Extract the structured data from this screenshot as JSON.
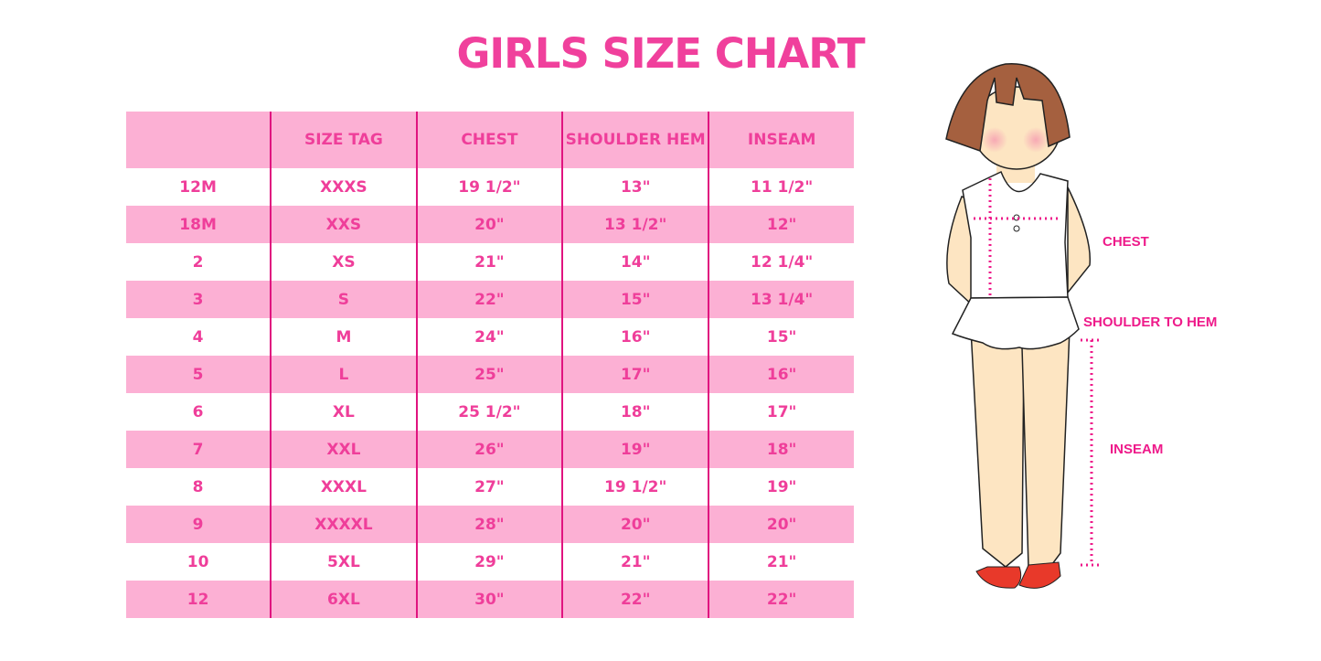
{
  "title": "GIRLS SIZE CHART",
  "table": {
    "headers": [
      "",
      "SIZE TAG",
      "CHEST",
      "SHOULDER HEM",
      "INSEAM"
    ],
    "rows": [
      [
        "12M",
        "XXXS",
        "19 1/2\"",
        "13\"",
        "11 1/2\""
      ],
      [
        "18M",
        "XXS",
        "20\"",
        "13 1/2\"",
        "12\""
      ],
      [
        "2",
        "XS",
        "21\"",
        "14\"",
        "12 1/4\""
      ],
      [
        "3",
        "S",
        "22\"",
        "15\"",
        "13 1/4\""
      ],
      [
        "4",
        "M",
        "24\"",
        "16\"",
        "15\""
      ],
      [
        "5",
        "L",
        "25\"",
        "17\"",
        "16\""
      ],
      [
        "6",
        "XL",
        "25 1/2\"",
        "18\"",
        "17\""
      ],
      [
        "7",
        "XXL",
        "26\"",
        "19\"",
        "18\""
      ],
      [
        "8",
        "XXXL",
        "27\"",
        "19 1/2\"",
        "19\""
      ],
      [
        "9",
        "XXXXL",
        "28\"",
        "20\"",
        "20\""
      ],
      [
        "10",
        "5XL",
        "29\"",
        "21\"",
        "21\""
      ],
      [
        "12",
        "6XL",
        "30\"",
        "22\"",
        "22\""
      ]
    ]
  },
  "figure": {
    "labels": {
      "chest": "CHEST",
      "shoulder_to_hem": "SHOULDER TO HEM",
      "inseam": "INSEAM"
    }
  },
  "colors": {
    "accent": "#f0409c",
    "stripe": "#fcb0d4",
    "divider": "#e0137f"
  }
}
